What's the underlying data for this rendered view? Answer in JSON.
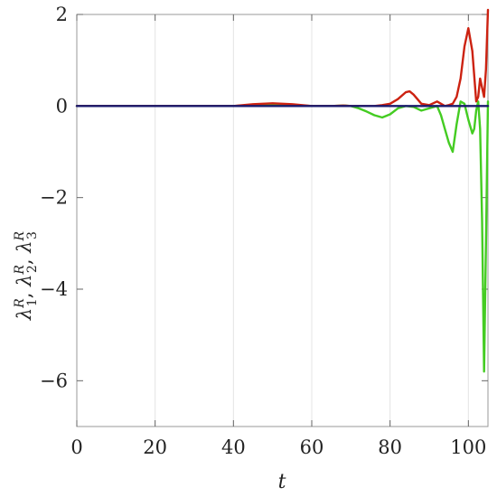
{
  "chart_data": {
    "type": "line",
    "xlabel": "t",
    "ylabel_parts": [
      "λ",
      "R",
      "1",
      ", ",
      "λ",
      "R",
      "2",
      ", ",
      "λ",
      "R",
      "3"
    ],
    "xlim": [
      0,
      105
    ],
    "ylim": [
      -7,
      2
    ],
    "xticks": [
      0,
      20,
      40,
      60,
      80,
      100
    ],
    "xtick_labels": [
      "0",
      "20",
      "40",
      "60",
      "80",
      "100"
    ],
    "yticks": [
      2,
      0,
      -2,
      -4,
      -6
    ],
    "ytick_labels": [
      "2",
      "0",
      "−2",
      "−4",
      "−6"
    ],
    "grid": true,
    "series": [
      {
        "color": "#44cc22",
        "x": [
          0,
          20,
          40,
          45,
          50,
          55,
          60,
          65,
          68,
          70,
          72,
          74,
          76,
          78,
          80,
          82,
          84,
          86,
          88,
          90,
          92,
          93,
          94,
          95,
          96,
          97,
          98,
          99,
          100,
          101,
          101.5,
          102,
          102.5,
          103,
          103.5,
          104,
          104.5,
          105
        ],
        "y": [
          0,
          0,
          0,
          0.02,
          0.03,
          0.02,
          0,
          0,
          0.01,
          0,
          -0.05,
          -0.12,
          -0.2,
          -0.25,
          -0.18,
          -0.05,
          0,
          -0.02,
          -0.1,
          -0.05,
          0,
          -0.2,
          -0.5,
          -0.8,
          -1.0,
          -0.4,
          0.1,
          0.05,
          -0.3,
          -0.6,
          -0.5,
          -0.1,
          0.1,
          -0.5,
          -2.5,
          -5.8,
          -3.0,
          0.1
        ]
      },
      {
        "color": "#cc2211",
        "x": [
          0,
          20,
          40,
          45,
          50,
          55,
          60,
          65,
          68,
          70,
          72,
          74,
          76,
          78,
          80,
          82,
          84,
          85,
          86,
          88,
          90,
          92,
          93,
          94,
          95,
          96,
          97,
          98,
          99,
          100,
          101,
          102,
          102.5,
          103,
          104,
          104.5,
          105
        ],
        "y": [
          0,
          0,
          0,
          0.04,
          0.06,
          0.04,
          0,
          0,
          0.01,
          0,
          0,
          0,
          0,
          0.02,
          0.05,
          0.15,
          0.3,
          0.32,
          0.25,
          0.05,
          0.02,
          0.1,
          0.05,
          0,
          0.02,
          0.05,
          0.2,
          0.6,
          1.3,
          1.7,
          1.2,
          0.1,
          0.2,
          0.6,
          0.2,
          0.8,
          2.1
        ]
      },
      {
        "color": "#1a1a6e",
        "x": [
          0,
          105
        ],
        "y": [
          0,
          0
        ]
      }
    ]
  }
}
